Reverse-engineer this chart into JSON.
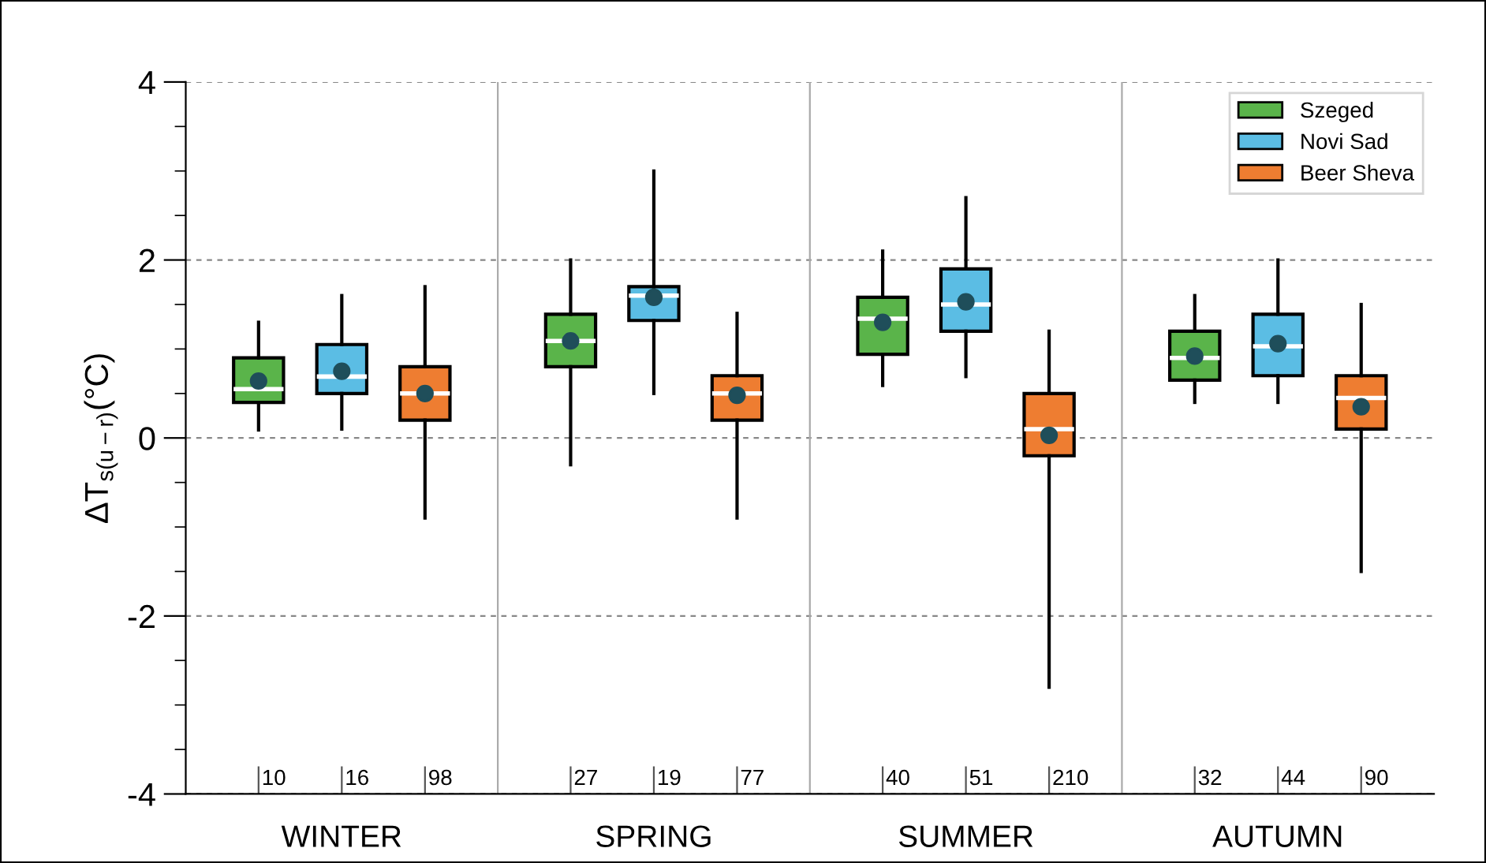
{
  "chart_data": {
    "type": "box",
    "ylabel": "ΔT$_{s(u−r)}$(°C)",
    "categories": [
      "WINTER",
      "SPRING",
      "SUMMER",
      "AUTUMN"
    ],
    "series": [
      {
        "name": "Szeged",
        "color": "#5ab44a",
        "boxes": [
          {
            "low": 0.09,
            "q1": 0.4,
            "median": 0.55,
            "q3": 0.9,
            "high": 1.3,
            "mean": 0.64
          },
          {
            "low": -0.3,
            "q1": 0.8,
            "median": 1.09,
            "q3": 1.39,
            "high": 2.0,
            "mean": 1.09
          },
          {
            "low": 0.59,
            "q1": 0.94,
            "median": 1.34,
            "q3": 1.58,
            "high": 2.1,
            "mean": 1.3
          },
          {
            "low": 0.4,
            "q1": 0.65,
            "median": 0.9,
            "q3": 1.2,
            "high": 1.6,
            "mean": 0.92
          }
        ]
      },
      {
        "name": "Novi Sad",
        "color": "#5bbde4",
        "boxes": [
          {
            "low": 0.1,
            "q1": 0.5,
            "median": 0.69,
            "q3": 1.05,
            "high": 1.6,
            "mean": 0.75
          },
          {
            "low": 0.5,
            "q1": 1.32,
            "median": 1.6,
            "q3": 1.7,
            "high": 3.0,
            "mean": 1.58
          },
          {
            "low": 0.69,
            "q1": 1.2,
            "median": 1.5,
            "q3": 1.9,
            "high": 2.7,
            "mean": 1.53
          },
          {
            "low": 0.4,
            "q1": 0.7,
            "median": 1.03,
            "q3": 1.39,
            "high": 2.0,
            "mean": 1.06
          }
        ]
      },
      {
        "name": "Beer Sheva",
        "color": "#ee7d31",
        "boxes": [
          {
            "low": -0.9,
            "q1": 0.2,
            "median": 0.5,
            "q3": 0.8,
            "high": 1.7,
            "mean": 0.5
          },
          {
            "low": -0.9,
            "q1": 0.2,
            "median": 0.5,
            "q3": 0.7,
            "high": 1.4,
            "mean": 0.48
          },
          {
            "low": -2.8,
            "q1": -0.2,
            "median": 0.1,
            "q3": 0.5,
            "high": 1.2,
            "mean": 0.03
          },
          {
            "low": -1.5,
            "q1": 0.1,
            "median": 0.45,
            "q3": 0.7,
            "high": 1.5,
            "mean": 0.35
          }
        ]
      }
    ],
    "annotations": [
      "10",
      "16",
      "98",
      "27",
      "19",
      "77",
      "40",
      "51",
      "210",
      "32",
      "44",
      "90"
    ],
    "ylim": [
      -4,
      4
    ],
    "yticks": [
      -4,
      -2,
      0,
      2,
      4
    ],
    "grid": "y",
    "legend": "top right"
  }
}
